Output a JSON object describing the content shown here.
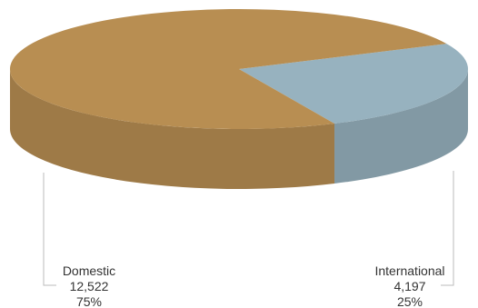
{
  "chart_data": {
    "type": "pie",
    "style": "3d",
    "slices": [
      {
        "label": "Domestic",
        "value": 12522,
        "value_text": "12,522",
        "percent_text": "75%",
        "color": "#b88e52"
      },
      {
        "label": "International",
        "value": 4197,
        "value_text": "4,197",
        "percent_text": "25%",
        "color": "#97b2bf"
      }
    ]
  }
}
